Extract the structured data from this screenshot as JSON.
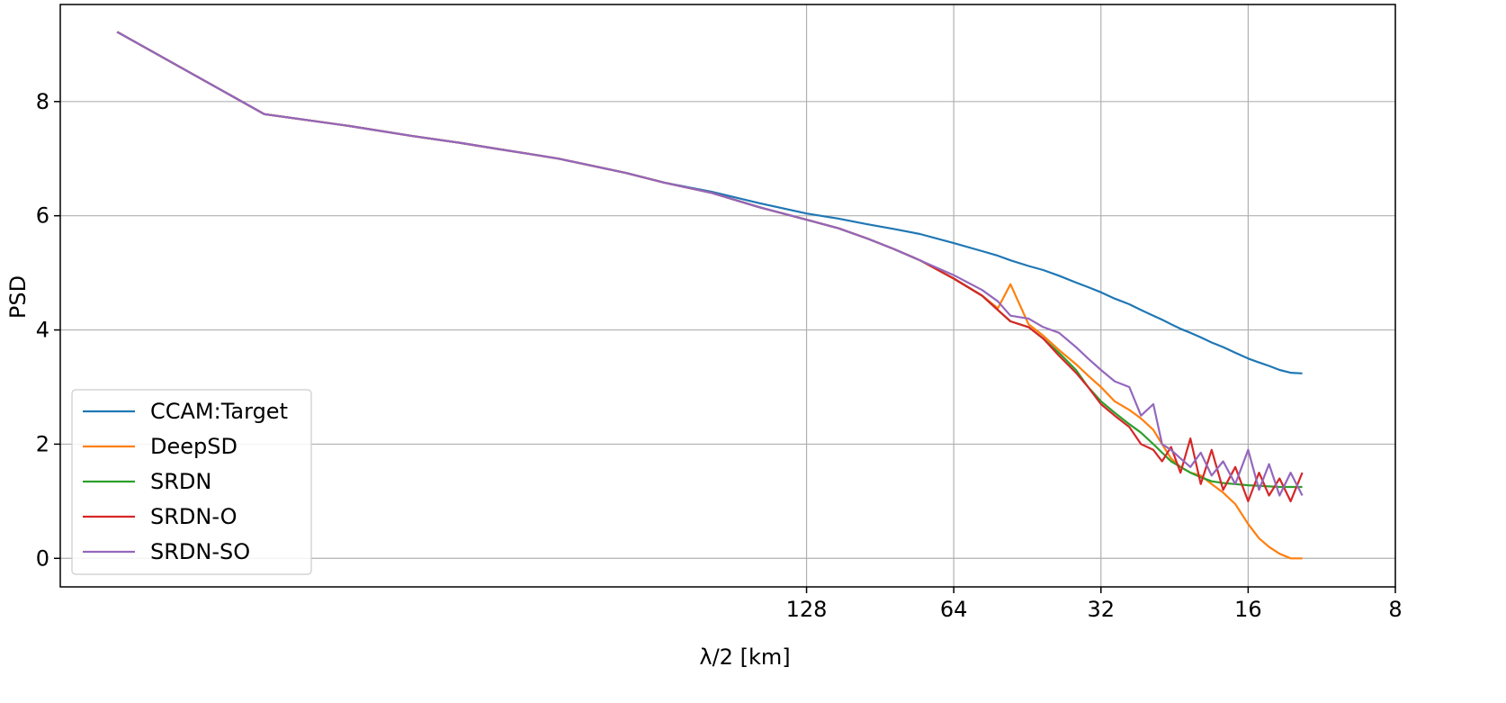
{
  "chart_data": {
    "type": "line",
    "x_label": "λ/2 [km]",
    "y_label": "PSD",
    "x_scale": "log",
    "grid": true,
    "legend": "lower left",
    "x": [
      3290,
      1645,
      1097,
      823,
      658,
      548,
      470,
      411,
      300,
      250,
      200,
      160,
      128,
      110,
      96,
      85,
      75,
      64,
      56,
      52,
      49,
      45,
      42,
      39,
      36,
      34,
      32,
      30,
      28,
      26.5,
      25,
      24,
      23,
      22,
      21,
      20,
      19,
      18,
      17,
      16,
      15.2,
      14.5,
      13.8,
      13.1,
      12.4
    ],
    "xlim": [
      4300,
      8
    ],
    "xticks": [
      128,
      64,
      32,
      16,
      8
    ],
    "ylim": [
      -0.5,
      9.7
    ],
    "yticks": [
      0,
      2,
      4,
      6,
      8
    ],
    "series": [
      {
        "name": "CCAM:Target",
        "color": "#1f77b4",
        "values": [
          9.22,
          7.78,
          7.57,
          7.4,
          7.28,
          7.17,
          7.08,
          7.0,
          6.75,
          6.58,
          6.42,
          6.22,
          6.04,
          5.95,
          5.85,
          5.77,
          5.68,
          5.52,
          5.38,
          5.3,
          5.22,
          5.12,
          5.05,
          4.95,
          4.83,
          4.75,
          4.66,
          4.55,
          4.45,
          4.35,
          4.25,
          4.18,
          4.1,
          4.02,
          3.95,
          3.87,
          3.78,
          3.7,
          3.6,
          3.5,
          3.43,
          3.37,
          3.3,
          3.25,
          3.24
        ]
      },
      {
        "name": "DeepSD",
        "color": "#ff7f0e",
        "values": [
          9.22,
          7.78,
          7.57,
          7.4,
          7.28,
          7.17,
          7.08,
          7.0,
          6.75,
          6.58,
          6.4,
          6.15,
          5.93,
          5.78,
          5.6,
          5.42,
          5.22,
          4.9,
          4.6,
          4.38,
          4.8,
          4.1,
          3.9,
          3.65,
          3.4,
          3.2,
          3.0,
          2.75,
          2.6,
          2.45,
          2.25,
          2.0,
          1.75,
          1.6,
          1.5,
          1.45,
          1.3,
          1.15,
          0.95,
          0.6,
          0.35,
          0.2,
          0.08,
          0.0,
          0.0
        ]
      },
      {
        "name": "SRDN",
        "color": "#2ca02c",
        "values": [
          9.22,
          7.78,
          7.57,
          7.4,
          7.28,
          7.17,
          7.08,
          7.0,
          6.75,
          6.58,
          6.4,
          6.15,
          5.93,
          5.78,
          5.6,
          5.42,
          5.22,
          4.9,
          4.6,
          4.35,
          4.15,
          4.05,
          3.85,
          3.6,
          3.3,
          3.0,
          2.75,
          2.55,
          2.35,
          2.2,
          2.0,
          1.85,
          1.7,
          1.6,
          1.5,
          1.42,
          1.35,
          1.32,
          1.3,
          1.28,
          1.27,
          1.26,
          1.25,
          1.25,
          1.25
        ]
      },
      {
        "name": "SRDN-O",
        "color": "#d62728",
        "values": [
          9.22,
          7.78,
          7.57,
          7.4,
          7.28,
          7.17,
          7.08,
          7.0,
          6.75,
          6.58,
          6.4,
          6.15,
          5.93,
          5.78,
          5.6,
          5.42,
          5.22,
          4.9,
          4.6,
          4.35,
          4.15,
          4.05,
          3.85,
          3.55,
          3.25,
          3.0,
          2.7,
          2.5,
          2.3,
          2.0,
          1.9,
          1.7,
          1.95,
          1.5,
          2.1,
          1.3,
          1.9,
          1.2,
          1.6,
          1.0,
          1.5,
          1.1,
          1.4,
          1.0,
          1.5
        ]
      },
      {
        "name": "SRDN-SO",
        "color": "#9467bd",
        "values": [
          9.22,
          7.78,
          7.57,
          7.4,
          7.28,
          7.17,
          7.08,
          7.0,
          6.75,
          6.58,
          6.4,
          6.15,
          5.93,
          5.78,
          5.6,
          5.42,
          5.22,
          4.96,
          4.7,
          4.5,
          4.25,
          4.2,
          4.05,
          3.95,
          3.7,
          3.5,
          3.3,
          3.1,
          3.0,
          2.5,
          2.7,
          2.0,
          1.9,
          1.75,
          1.6,
          1.85,
          1.45,
          1.7,
          1.3,
          1.9,
          1.2,
          1.65,
          1.1,
          1.5,
          1.1
        ]
      }
    ]
  }
}
